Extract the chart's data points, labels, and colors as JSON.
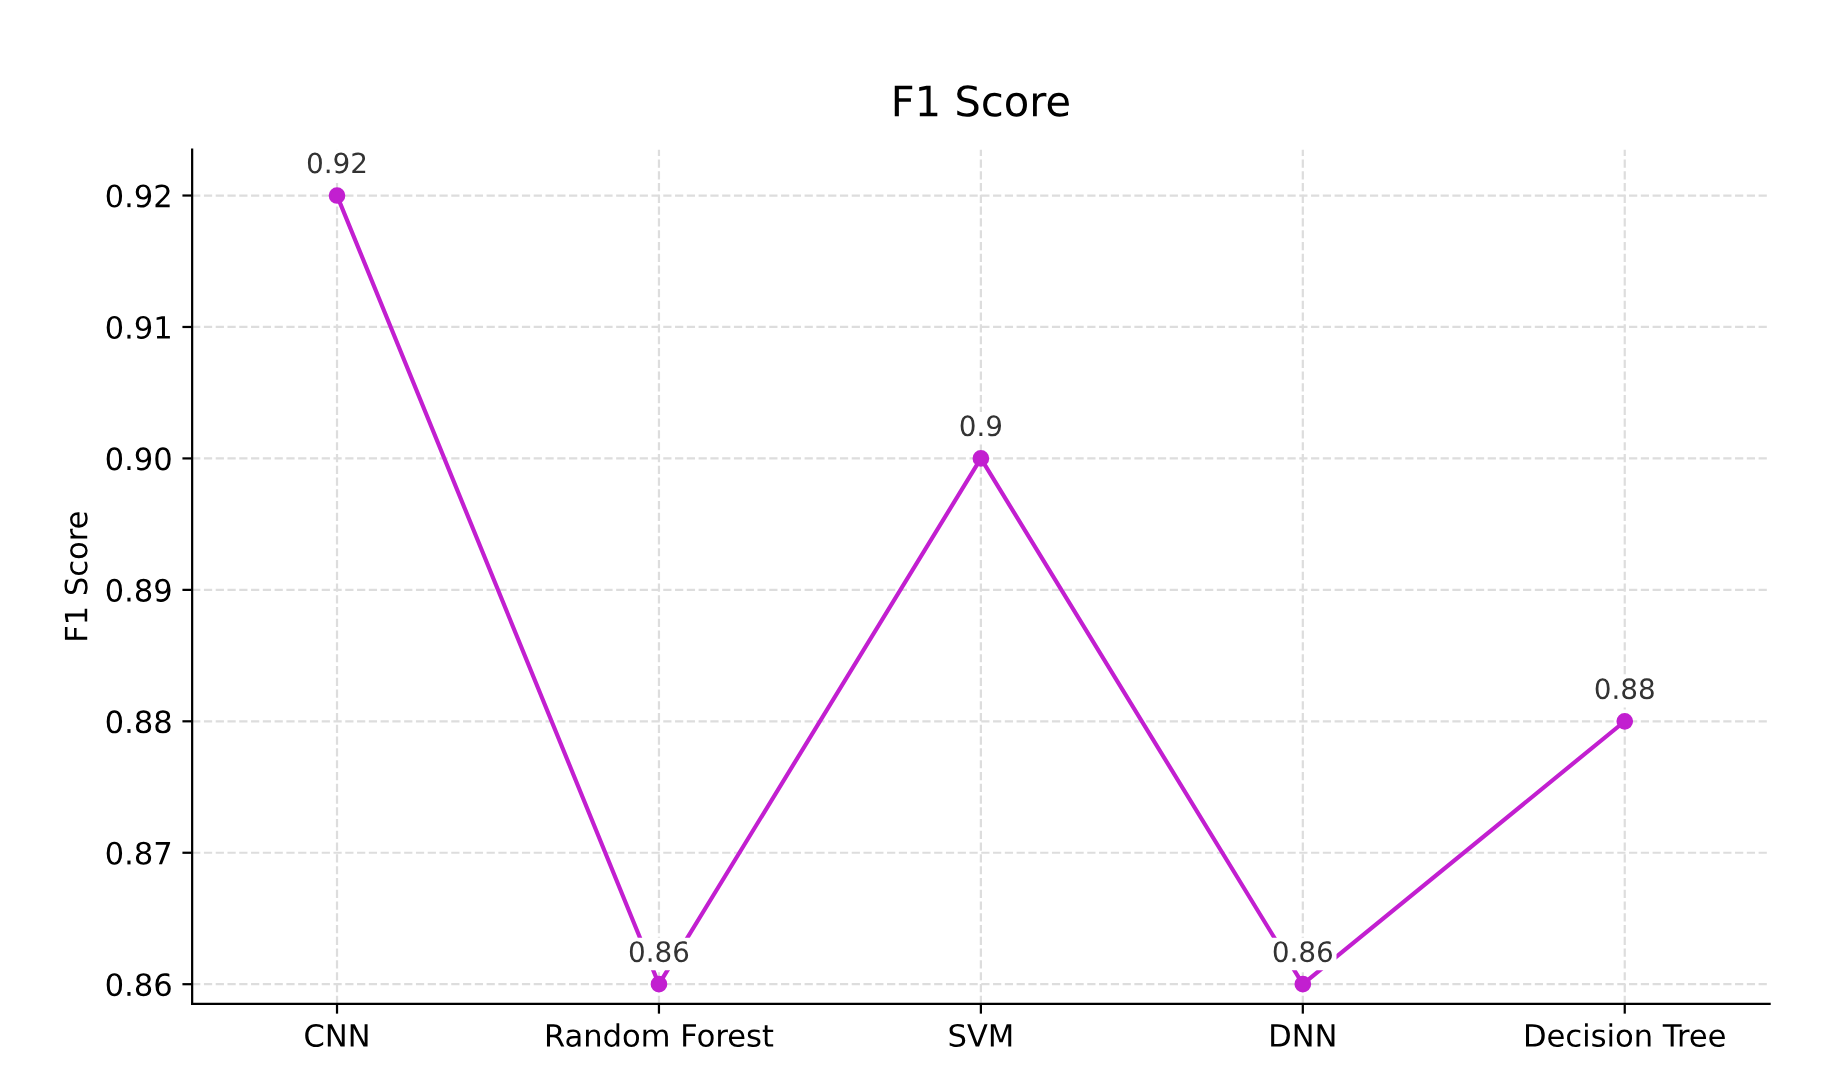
{
  "chart_data": {
    "type": "line",
    "title": "F1 Score",
    "ylabel": "F1 Score",
    "categories": [
      "CNN",
      "Random Forest",
      "SVM",
      "DNN",
      "Decision Tree"
    ],
    "series": [
      {
        "color": "#c21fd0",
        "values": [
          0.92,
          0.86,
          0.9,
          0.86,
          0.88
        ]
      }
    ],
    "ylim": [
      0.8585,
      0.9235
    ],
    "yticks": [
      {
        "value": 0.86,
        "label": "0.86"
      },
      {
        "value": 0.87,
        "label": "0.87"
      },
      {
        "value": 0.88,
        "label": "0.88"
      },
      {
        "value": 0.89,
        "label": "0.89"
      },
      {
        "value": 0.9,
        "label": "0.90"
      },
      {
        "value": 0.91,
        "label": "0.91"
      },
      {
        "value": 0.92,
        "label": "0.92"
      }
    ],
    "grid": true,
    "marker": "circle",
    "line_style": "solid",
    "data_labels": true
  }
}
